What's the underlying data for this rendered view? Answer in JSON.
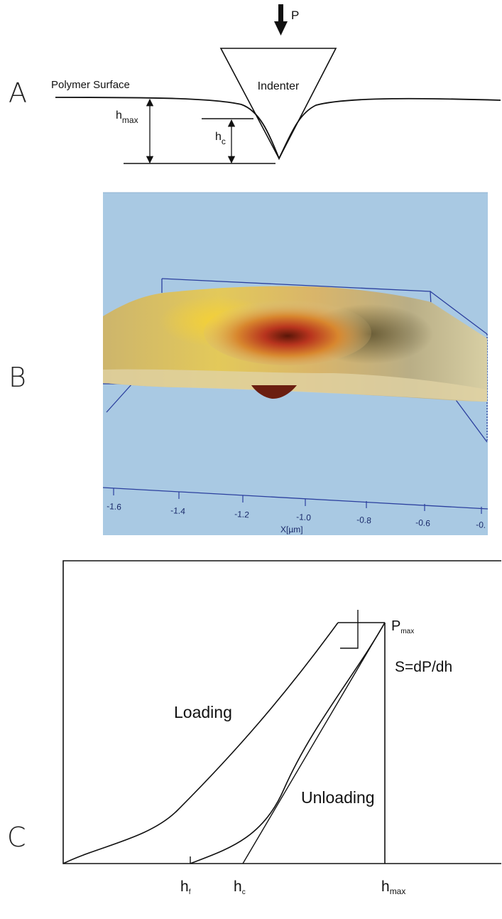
{
  "panel_a": {
    "letter": "A",
    "load_label": "P",
    "surface_label": "Polymer Surface",
    "indenter_label": "Indenter",
    "hmax": {
      "base": "h",
      "sub": "max"
    },
    "hc": {
      "base": "h",
      "sub": "c"
    }
  },
  "panel_b": {
    "letter": "B",
    "x_ticks": [
      "-1.6",
      "-1.4",
      "-1.2",
      "-1.0",
      "-0.8",
      "-0.6",
      "-0."
    ],
    "x_axis_label": "X[µm]",
    "colors": {
      "background": "#a9c9e3",
      "surface": "#d9c58a",
      "pit": "#b8341e",
      "frame": "#2b3f9e"
    }
  },
  "panel_c": {
    "letter": "C",
    "loading_label": "Loading",
    "unloading_label": "Unloading",
    "pmax": {
      "base": "P",
      "sub": "max"
    },
    "stiffness_label": "S=dP/dh",
    "hf": {
      "base": "h",
      "sub": "f"
    },
    "hc": {
      "base": "h",
      "sub": "c"
    },
    "hmax": {
      "base": "h",
      "sub": "max"
    }
  }
}
